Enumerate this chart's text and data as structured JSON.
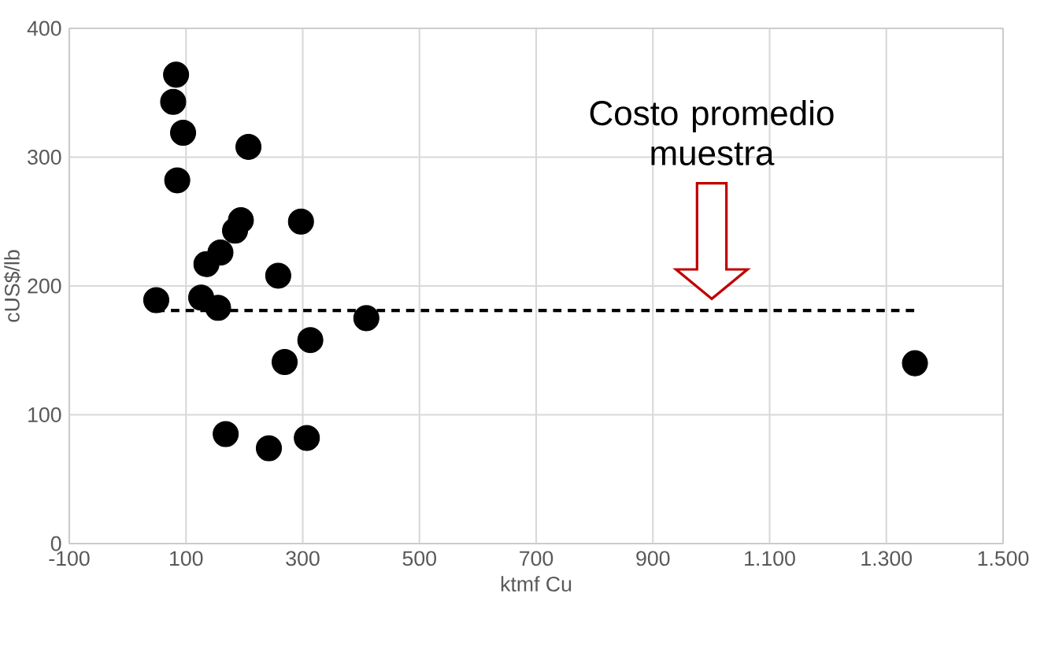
{
  "chart_data": {
    "type": "scatter",
    "xlabel": "ktmf Cu",
    "ylabel": "cUS$/lb",
    "xlim": [
      -100,
      1500
    ],
    "xticks": [
      -100,
      100,
      300,
      500,
      700,
      900,
      {
        "value": 1100,
        "label": "1.100"
      },
      {
        "value": 1300,
        "label": "1.300"
      },
      {
        "value": 1500,
        "label": "1.500"
      }
    ],
    "ylim": [
      0,
      400
    ],
    "yticks": [
      0,
      100,
      200,
      300,
      400
    ],
    "grid": true,
    "series": [
      {
        "color": "#000000",
        "marker": "circle",
        "x": [
          83,
          78,
          95,
          85,
          207,
          194,
          184,
          297,
          159,
          135,
          258,
          49,
          126,
          155,
          409,
          313,
          269,
          168,
          242,
          307,
          1349
        ],
        "values": [
          364,
          343,
          319,
          282,
          308,
          251,
          243,
          250,
          226,
          217,
          208,
          189,
          191,
          183,
          175,
          158,
          141,
          85,
          74,
          82,
          140
        ]
      },
      {
        "type": "line",
        "color": "#000000",
        "line_style": "dashed",
        "marker": "none",
        "x": [
          49,
          1349
        ],
        "values": [
          181,
          181
        ]
      }
    ],
    "annotations": [
      "Costo promedio muestra"
    ]
  }
}
